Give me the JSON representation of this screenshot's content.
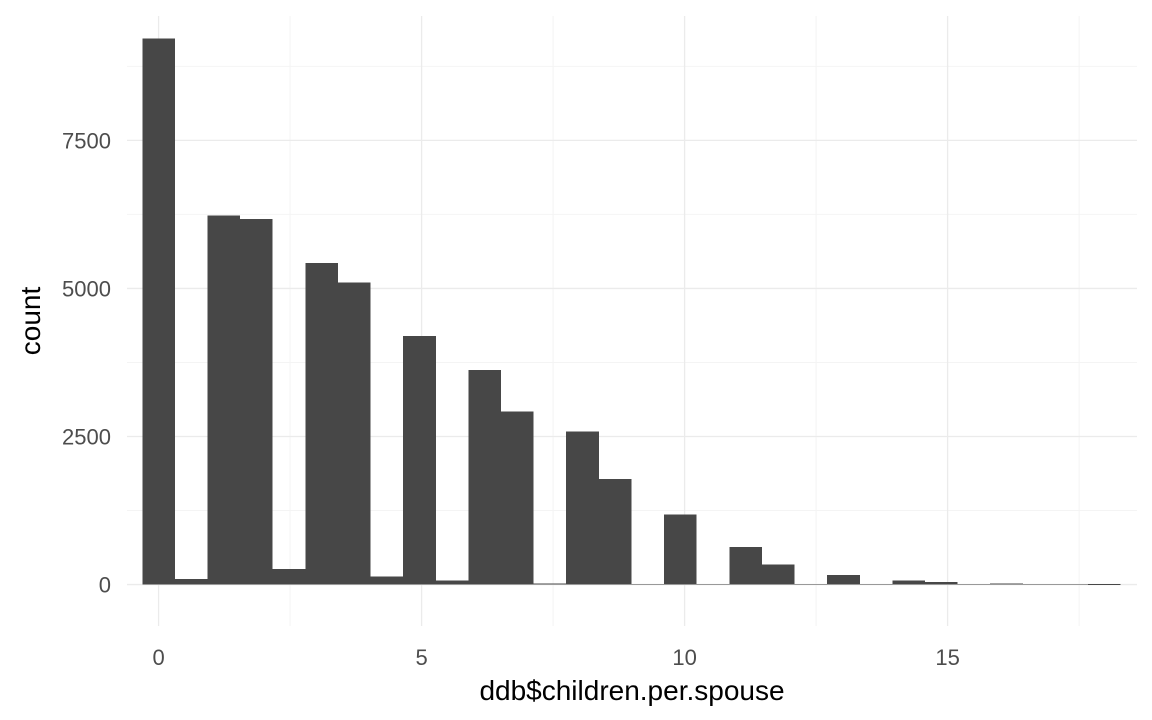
{
  "chart_data": {
    "type": "bar",
    "title": "",
    "xlabel": "ddb$children.per.spouse",
    "ylabel": "count",
    "xlim": [
      -0.6,
      18.6
    ],
    "ylim": [
      -700,
      9600
    ],
    "x_ticks": [
      0,
      5,
      10,
      15
    ],
    "x_tick_labels": [
      "0",
      "5",
      "10",
      "15"
    ],
    "y_ticks": [
      0,
      2500,
      5000,
      7500
    ],
    "y_tick_labels": [
      "0",
      "2500",
      "5000",
      "7500"
    ],
    "grid": true,
    "legend": "none",
    "bin_width": 0.62,
    "bins": [
      {
        "center": 0.0,
        "count": 9220
      },
      {
        "center": 0.62,
        "count": 90
      },
      {
        "center": 1.24,
        "count": 6230
      },
      {
        "center": 1.86,
        "count": 6170
      },
      {
        "center": 2.48,
        "count": 260
      },
      {
        "center": 3.1,
        "count": 5430
      },
      {
        "center": 3.72,
        "count": 5100
      },
      {
        "center": 4.34,
        "count": 140
      },
      {
        "center": 4.96,
        "count": 4200
      },
      {
        "center": 5.58,
        "count": 70
      },
      {
        "center": 6.2,
        "count": 3620
      },
      {
        "center": 6.82,
        "count": 2920
      },
      {
        "center": 7.44,
        "count": 20
      },
      {
        "center": 8.06,
        "count": 2580
      },
      {
        "center": 8.68,
        "count": 1780
      },
      {
        "center": 9.3,
        "count": 0
      },
      {
        "center": 9.92,
        "count": 1180
      },
      {
        "center": 10.54,
        "count": 0
      },
      {
        "center": 11.16,
        "count": 630
      },
      {
        "center": 11.78,
        "count": 340
      },
      {
        "center": 12.4,
        "count": 0
      },
      {
        "center": 13.02,
        "count": 160
      },
      {
        "center": 13.64,
        "count": 0
      },
      {
        "center": 14.26,
        "count": 70
      },
      {
        "center": 14.88,
        "count": 40
      },
      {
        "center": 15.5,
        "count": 0
      },
      {
        "center": 16.12,
        "count": 20
      },
      {
        "center": 16.74,
        "count": 10
      },
      {
        "center": 17.36,
        "count": 0
      },
      {
        "center": 17.98,
        "count": 5
      }
    ],
    "colors": {
      "bar": "#474747",
      "grid_major": "#ebebeb",
      "grid_minor": "#f4f4f4",
      "tick_text": "#4d4d4d",
      "axis_title": "#000000",
      "background": "#ffffff"
    }
  }
}
